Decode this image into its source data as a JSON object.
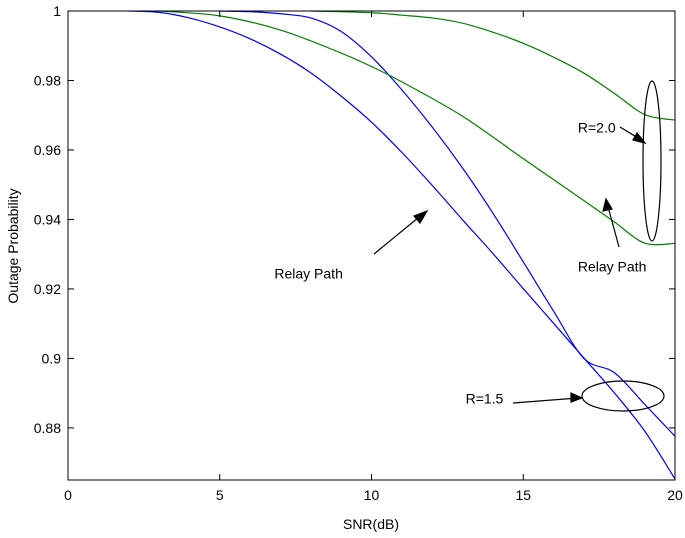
{
  "chart_data": {
    "type": "line",
    "title": "",
    "xlabel": "SNR(dB)",
    "ylabel": "Outage Probability",
    "xlim": [
      0,
      20
    ],
    "ylim": [
      0.865,
      1.0
    ],
    "xticks": [
      0,
      5,
      10,
      15,
      20
    ],
    "xtick_labels": [
      "0",
      "5",
      "10",
      "15",
      "20"
    ],
    "yticks": [
      0.88,
      0.9,
      0.92,
      0.94,
      0.96,
      0.98,
      1.0
    ],
    "ytick_labels": [
      "0.88",
      "0.9",
      "0.92",
      "0.94",
      "0.96",
      "0.98",
      "1"
    ],
    "grid": false,
    "series": [
      {
        "color": "#0000ff",
        "x": [
          2,
          3,
          4,
          5,
          6,
          7,
          8,
          9,
          10,
          11,
          12,
          13,
          14,
          15,
          16,
          17,
          18,
          19,
          20
        ],
        "y": [
          1.0,
          0.9996,
          0.998,
          0.9954,
          0.992,
          0.9876,
          0.9822,
          0.9755,
          0.968,
          0.9593,
          0.9498,
          0.9399,
          0.9302,
          0.9201,
          0.9101,
          0.9001,
          0.8901,
          0.8791,
          0.8653
        ]
      },
      {
        "color": "#0000ff",
        "x": [
          5,
          6,
          7,
          8,
          9,
          10,
          11,
          12,
          13,
          14,
          15,
          16,
          17,
          18,
          19,
          20
        ],
        "y": [
          1.0,
          0.9998,
          0.9992,
          0.998,
          0.9941,
          0.9868,
          0.9773,
          0.9666,
          0.9548,
          0.9418,
          0.9278,
          0.9136,
          0.9,
          0.8959,
          0.8868,
          0.8776
        ]
      },
      {
        "color": "#008000",
        "x": [
          3,
          5,
          7,
          9,
          10,
          11,
          13,
          15,
          17,
          18,
          19,
          20
        ],
        "y": [
          1.0,
          0.9986,
          0.9945,
          0.9879,
          0.984,
          0.9796,
          0.9697,
          0.9575,
          0.9454,
          0.9393,
          0.9332,
          0.9331
        ]
      },
      {
        "color": "#008000",
        "x": [
          8,
          10,
          11,
          12,
          13,
          14,
          15,
          16,
          17,
          18,
          19,
          20
        ],
        "y": [
          1.0,
          0.9995,
          0.9988,
          0.998,
          0.9965,
          0.9939,
          0.9907,
          0.9867,
          0.9821,
          0.9763,
          0.9702,
          0.9686
        ]
      }
    ],
    "annotations": [
      {
        "text": "R=2.0",
        "x": 16.8,
        "y": 0.965
      },
      {
        "text": "Relay Path",
        "x": 16.8,
        "y": 0.925
      },
      {
        "text": "Relay Path",
        "x": 6.8,
        "y": 0.923
      },
      {
        "text": "R=1.5",
        "x": 13.1,
        "y": 0.887
      }
    ]
  }
}
